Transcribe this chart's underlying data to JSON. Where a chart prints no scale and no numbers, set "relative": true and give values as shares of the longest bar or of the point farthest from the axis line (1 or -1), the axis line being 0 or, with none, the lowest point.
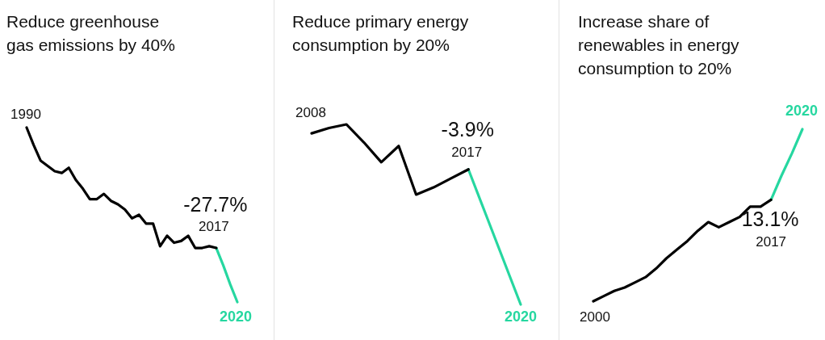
{
  "chart_data": [
    {
      "type": "line",
      "title": "Reduce greenhouse\ngas emissions by 40%",
      "relative": true,
      "marker": "none",
      "categories": [
        null,
        null,
        null,
        null,
        null,
        null,
        null,
        null,
        null,
        null,
        null,
        null,
        null,
        null,
        null,
        null,
        null,
        null,
        null,
        null,
        null,
        null,
        null,
        null,
        null,
        null,
        null,
        null,
        null,
        null,
        null
      ],
      "series": [
        {
          "color": "#000000",
          "values": [
            1.0,
            0.9,
            0.81,
            0.78,
            0.75,
            0.74,
            0.77,
            0.7,
            0.65,
            0.59,
            0.59,
            0.62,
            0.58,
            0.56,
            0.53,
            0.48,
            0.5,
            0.45,
            0.45,
            0.32,
            0.38,
            0.34,
            0.35,
            0.38,
            0.31,
            0.31,
            0.32,
            0.31,
            null,
            null,
            null
          ]
        },
        {
          "color": "#26d7a0",
          "values": [
            null,
            null,
            null,
            null,
            null,
            null,
            null,
            null,
            null,
            null,
            null,
            null,
            null,
            null,
            null,
            null,
            null,
            null,
            null,
            null,
            null,
            null,
            null,
            null,
            null,
            null,
            null,
            0.31,
            0.21,
            0.1,
            0
          ]
        }
      ],
      "annotations": [
        "1990",
        "-27.7%",
        "2017",
        "2020"
      ]
    },
    {
      "type": "line",
      "title": "Reduce primary energy\nconsumption by 20%",
      "relative": true,
      "marker": "none",
      "categories": [
        null,
        null,
        null,
        null,
        null,
        null,
        null,
        null,
        null,
        null,
        null,
        null,
        null
      ],
      "series": [
        {
          "color": "#000000",
          "values": [
            0.95,
            0.98,
            1.0,
            0.9,
            0.79,
            0.88,
            0.61,
            0.65,
            0.7,
            0.75,
            null,
            null,
            null
          ]
        },
        {
          "color": "#26d7a0",
          "values": [
            null,
            null,
            null,
            null,
            null,
            null,
            null,
            null,
            null,
            0.75,
            0.5,
            0.25,
            0
          ]
        }
      ],
      "annotations": [
        "2008",
        "-3.9%",
        "2017",
        "2020"
      ]
    },
    {
      "type": "line",
      "title": "Increase share of\nrenewables in energy\nconsumption to 20%",
      "relative": true,
      "marker": "none",
      "categories": [
        null,
        null,
        null,
        null,
        null,
        null,
        null,
        null,
        null,
        null,
        null,
        null,
        null,
        null,
        null,
        null,
        null,
        null,
        null,
        null,
        null
      ],
      "series": [
        {
          "color": "#000000",
          "values": [
            0,
            0.03,
            0.06,
            0.08,
            0.11,
            0.14,
            0.19,
            0.25,
            0.3,
            0.35,
            0.41,
            0.46,
            0.43,
            0.46,
            0.49,
            0.55,
            0.55,
            0.59,
            null,
            null,
            null
          ]
        },
        {
          "color": "#26d7a0",
          "values": [
            null,
            null,
            null,
            null,
            null,
            null,
            null,
            null,
            null,
            null,
            null,
            null,
            null,
            null,
            null,
            null,
            null,
            0.59,
            0.73,
            0.86,
            1.0
          ]
        }
      ],
      "annotations": [
        "2000",
        "13.1%",
        "2017",
        "2020"
      ]
    }
  ]
}
